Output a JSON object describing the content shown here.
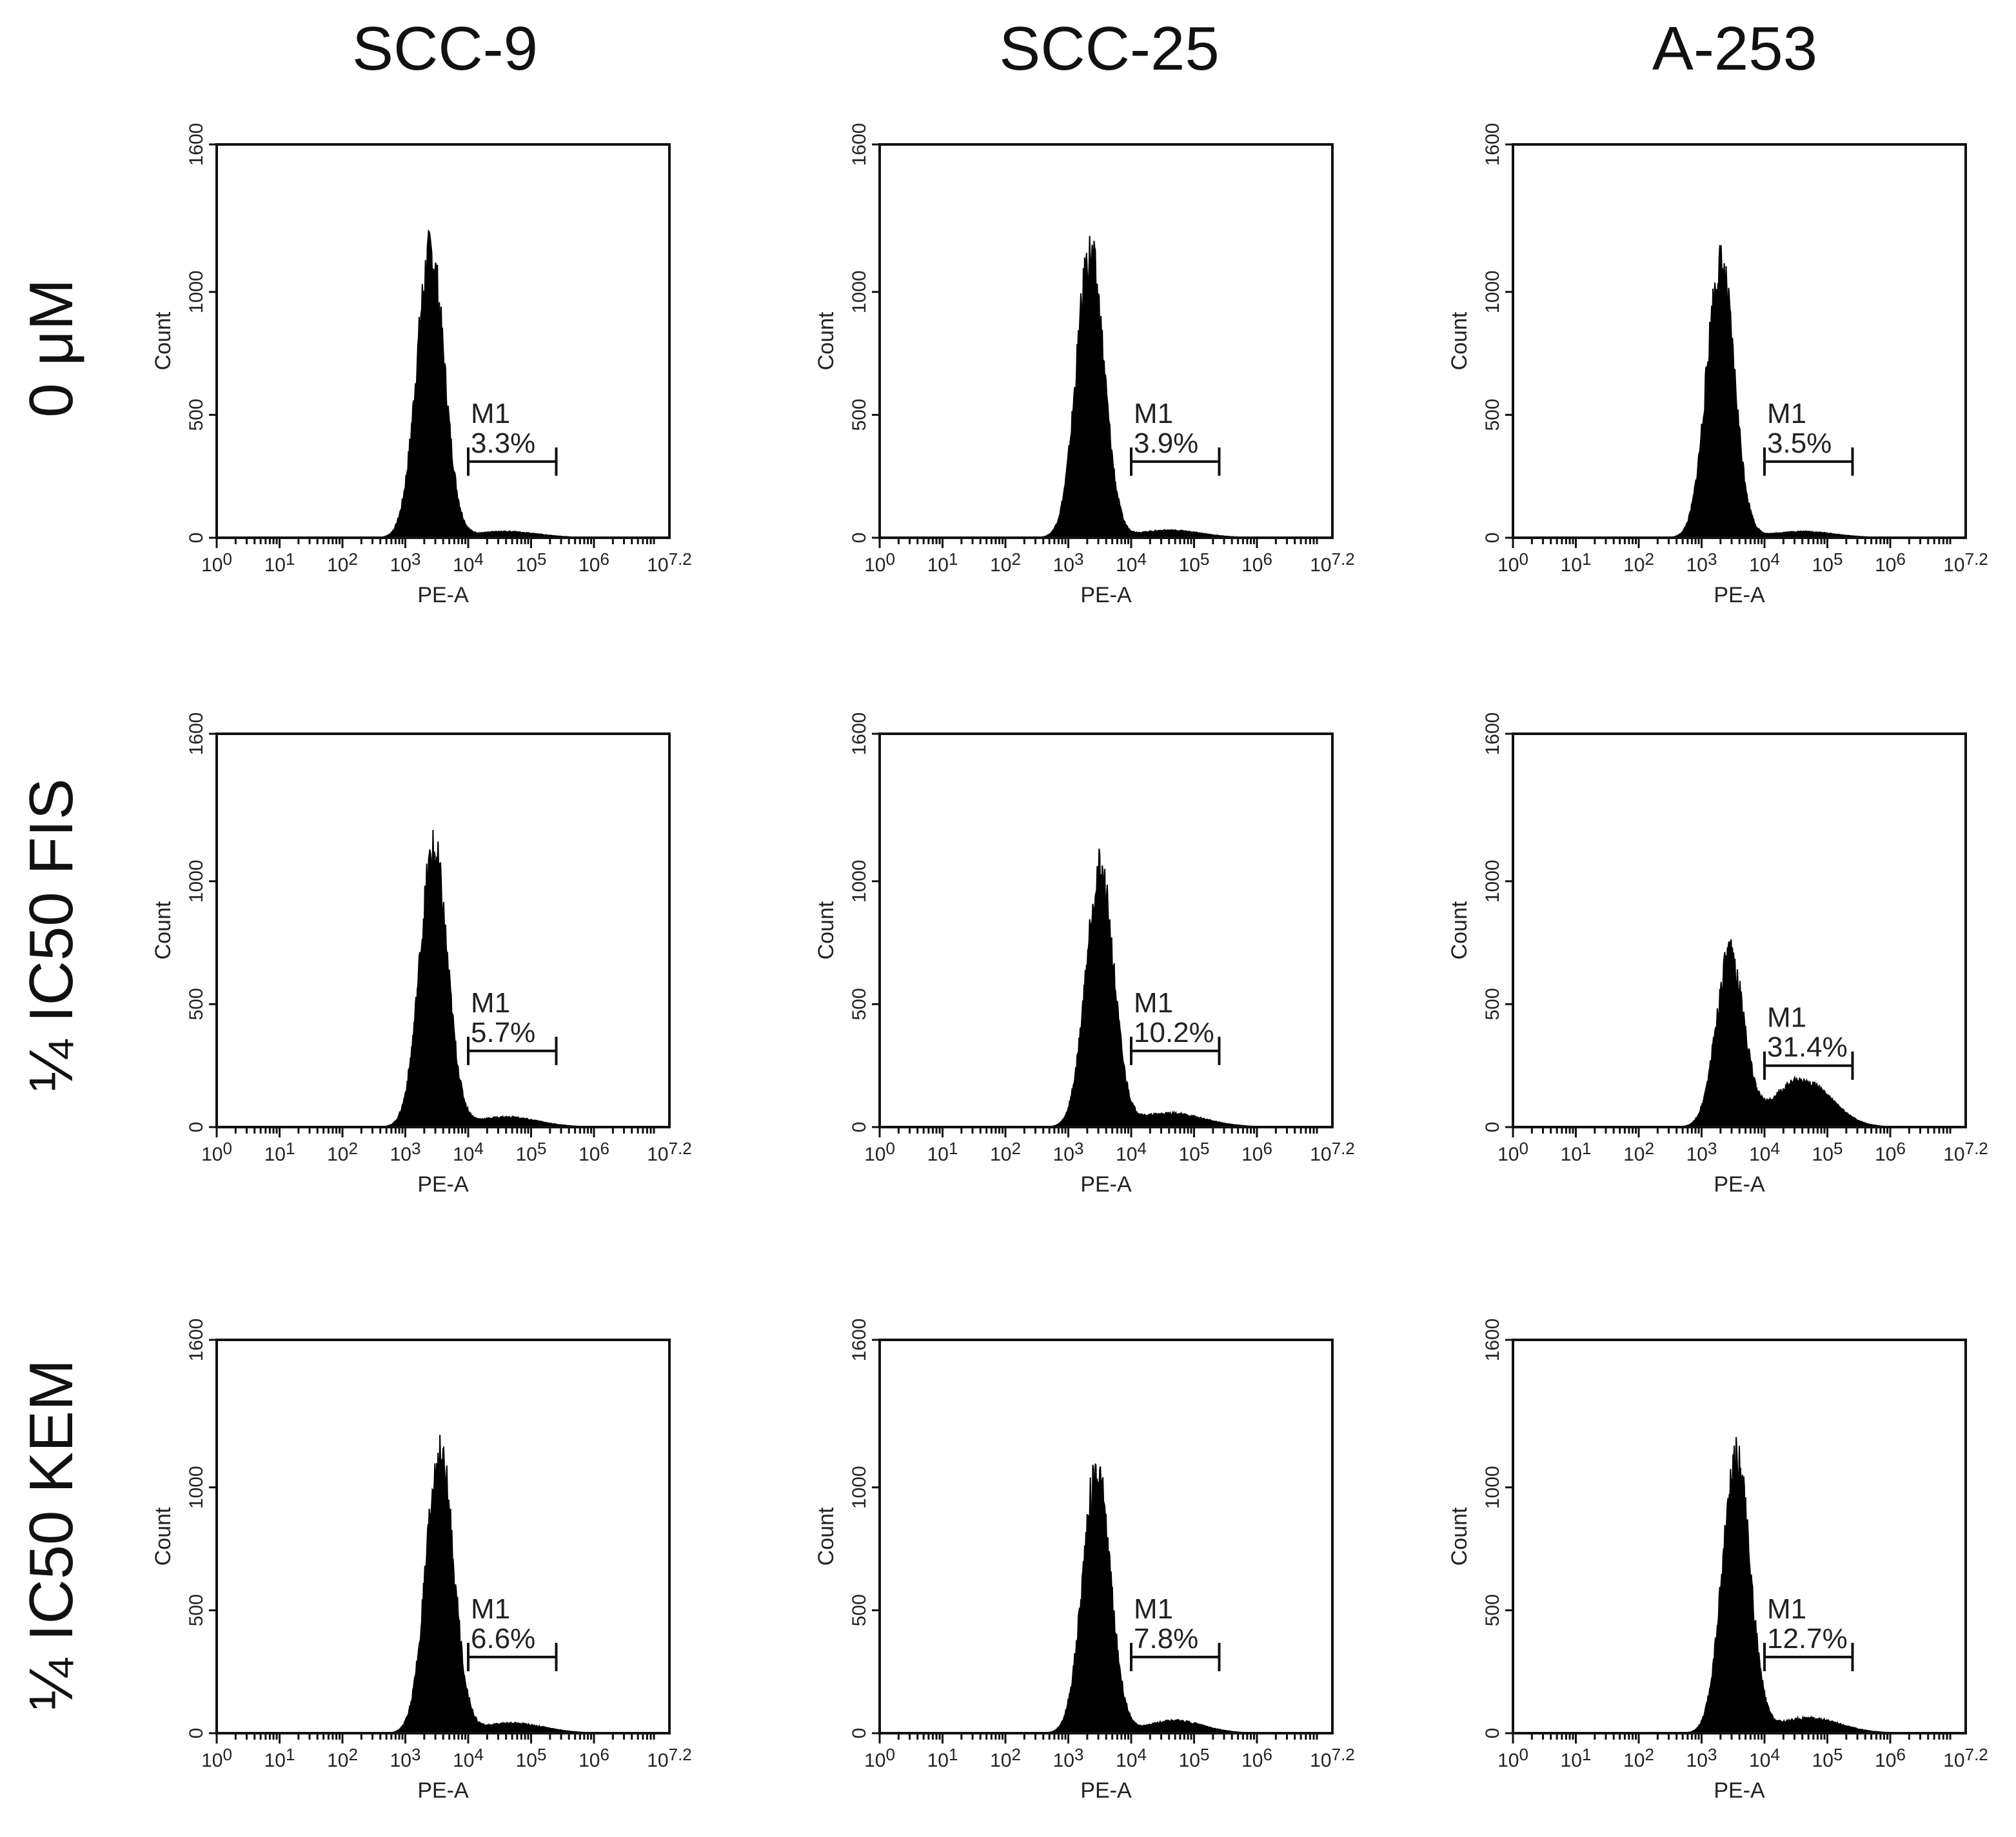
{
  "figure": {
    "column_titles": [
      "SCC-9",
      "SCC-25",
      "A-253"
    ],
    "row_titles": [
      "0 μM",
      "¼ IC50 FIS",
      "¼ IC50 KEM"
    ]
  },
  "chart_data": [
    {
      "type": "histogram",
      "row": 0,
      "col": 0,
      "cell_line": "SCC-9",
      "condition": "0 μM",
      "xlabel": "PE-A",
      "ylabel": "Count",
      "ylim": [
        0,
        1600
      ],
      "yticks": [
        0,
        500,
        1000,
        1600
      ],
      "xlim": [
        0,
        7.2
      ],
      "xticks": [
        "10^0",
        "10^1",
        "10^2",
        "10^3",
        "10^4",
        "10^5",
        "10^6",
        "10^7.2"
      ],
      "peak_log": 3.4,
      "peak_count": 1150,
      "peak_width": 0.22,
      "shoulder_count": 25,
      "shoulder_center": 4.6,
      "shoulder_width": 0.5,
      "marker": {
        "label": "M1",
        "value": "3.3%",
        "x_start": 4.0,
        "x_end": 5.4
      }
    },
    {
      "type": "histogram",
      "row": 0,
      "col": 1,
      "cell_line": "SCC-25",
      "condition": "0 μM",
      "xlabel": "PE-A",
      "ylabel": "Count",
      "ylim": [
        0,
        1600
      ],
      "yticks": [
        0,
        500,
        1000,
        1600
      ],
      "xlim": [
        0,
        7.2
      ],
      "xticks": [
        "10^0",
        "10^1",
        "10^2",
        "10^3",
        "10^4",
        "10^5",
        "10^6",
        "10^7.2"
      ],
      "peak_log": 3.35,
      "peak_count": 1140,
      "peak_width": 0.22,
      "shoulder_count": 30,
      "shoulder_center": 4.6,
      "shoulder_width": 0.5,
      "marker": {
        "label": "M1",
        "value": "3.9%",
        "x_start": 4.0,
        "x_end": 5.4
      }
    },
    {
      "type": "histogram",
      "row": 0,
      "col": 2,
      "cell_line": "A-253",
      "condition": "0 μM",
      "xlabel": "PE-A",
      "ylabel": "Count",
      "ylim": [
        0,
        1600
      ],
      "yticks": [
        0,
        500,
        1000,
        1600
      ],
      "xlim": [
        0,
        7.2
      ],
      "xticks": [
        "10^0",
        "10^1",
        "10^2",
        "10^3",
        "10^4",
        "10^5",
        "10^6",
        "10^7.2"
      ],
      "peak_log": 3.3,
      "peak_count": 1100,
      "peak_width": 0.22,
      "shoulder_count": 25,
      "shoulder_center": 4.6,
      "shoulder_width": 0.5,
      "marker": {
        "label": "M1",
        "value": "3.5%",
        "x_start": 4.0,
        "x_end": 5.4
      }
    },
    {
      "type": "histogram",
      "row": 1,
      "col": 0,
      "cell_line": "SCC-9",
      "condition": "¼ IC50 FIS",
      "xlabel": "PE-A",
      "ylabel": "Count",
      "ylim": [
        0,
        1600
      ],
      "yticks": [
        0,
        500,
        1000,
        1600
      ],
      "xlim": [
        0,
        7.2
      ],
      "xticks": [
        "10^0",
        "10^1",
        "10^2",
        "10^3",
        "10^4",
        "10^5",
        "10^6",
        "10^7.2"
      ],
      "peak_log": 3.45,
      "peak_count": 1110,
      "peak_width": 0.22,
      "shoulder_count": 40,
      "shoulder_center": 4.6,
      "shoulder_width": 0.5,
      "marker": {
        "label": "M1",
        "value": "5.7%",
        "x_start": 4.0,
        "x_end": 5.4
      }
    },
    {
      "type": "histogram",
      "row": 1,
      "col": 1,
      "cell_line": "SCC-25",
      "condition": "¼ IC50 FIS",
      "xlabel": "PE-A",
      "ylabel": "Count",
      "ylim": [
        0,
        1600
      ],
      "yticks": [
        0,
        500,
        1000,
        1600
      ],
      "xlim": [
        0,
        7.2
      ],
      "xticks": [
        "10^0",
        "10^1",
        "10^2",
        "10^3",
        "10^4",
        "10^5",
        "10^6",
        "10^7.2"
      ],
      "peak_log": 3.5,
      "peak_count": 1030,
      "peak_width": 0.22,
      "shoulder_count": 55,
      "shoulder_center": 4.6,
      "shoulder_width": 0.55,
      "marker": {
        "label": "M1",
        "value": "10.2%",
        "x_start": 4.0,
        "x_end": 5.4
      }
    },
    {
      "type": "histogram",
      "row": 1,
      "col": 2,
      "cell_line": "A-253",
      "condition": "¼ IC50 FIS",
      "xlabel": "PE-A",
      "ylabel": "Count",
      "ylim": [
        0,
        1600
      ],
      "yticks": [
        0,
        500,
        1000,
        1600
      ],
      "xlim": [
        0,
        7.2
      ],
      "xticks": [
        "10^0",
        "10^1",
        "10^2",
        "10^3",
        "10^4",
        "10^5",
        "10^6",
        "10^7.2"
      ],
      "peak_log": 3.45,
      "peak_count": 690,
      "peak_width": 0.22,
      "shoulder_count": 190,
      "shoulder_center": 4.6,
      "shoulder_width": 0.45,
      "marker": {
        "label": "M1",
        "value": "31.4%",
        "x_start": 4.0,
        "x_end": 5.4
      }
    },
    {
      "type": "histogram",
      "row": 2,
      "col": 0,
      "cell_line": "SCC-9",
      "condition": "¼ IC50 KEM",
      "xlabel": "PE-A",
      "ylabel": "Count",
      "ylim": [
        0,
        1600
      ],
      "yticks": [
        0,
        500,
        1000,
        1600
      ],
      "xlim": [
        0,
        7.2
      ],
      "xticks": [
        "10^0",
        "10^1",
        "10^2",
        "10^3",
        "10^4",
        "10^5",
        "10^6",
        "10^7.2"
      ],
      "peak_log": 3.55,
      "peak_count": 1120,
      "peak_width": 0.22,
      "shoulder_count": 40,
      "shoulder_center": 4.7,
      "shoulder_width": 0.5,
      "marker": {
        "label": "M1",
        "value": "6.6%",
        "x_start": 4.0,
        "x_end": 5.4
      }
    },
    {
      "type": "histogram",
      "row": 2,
      "col": 1,
      "cell_line": "SCC-25",
      "condition": "¼ IC50 KEM",
      "xlabel": "PE-A",
      "ylabel": "Count",
      "ylim": [
        0,
        1600
      ],
      "yticks": [
        0,
        500,
        1000,
        1600
      ],
      "xlim": [
        0,
        7.2
      ],
      "xticks": [
        "10^0",
        "10^1",
        "10^2",
        "10^3",
        "10^4",
        "10^5",
        "10^6",
        "10^7.2"
      ],
      "peak_log": 3.45,
      "peak_count": 1050,
      "peak_width": 0.22,
      "shoulder_count": 50,
      "shoulder_center": 4.7,
      "shoulder_width": 0.45,
      "marker": {
        "label": "M1",
        "value": "7.8%",
        "x_start": 4.0,
        "x_end": 5.4
      }
    },
    {
      "type": "histogram",
      "row": 2,
      "col": 2,
      "cell_line": "A-253",
      "condition": "¼ IC50 KEM",
      "xlabel": "PE-A",
      "ylabel": "Count",
      "ylim": [
        0,
        1600
      ],
      "yticks": [
        0,
        500,
        1000,
        1600
      ],
      "xlim": [
        0,
        7.2
      ],
      "xticks": [
        "10^0",
        "10^1",
        "10^2",
        "10^3",
        "10^4",
        "10^5",
        "10^6",
        "10^7.2"
      ],
      "peak_log": 3.55,
      "peak_count": 1100,
      "peak_width": 0.22,
      "shoulder_count": 60,
      "shoulder_center": 4.7,
      "shoulder_width": 0.5,
      "marker": {
        "label": "M1",
        "value": "12.7%",
        "x_start": 4.0,
        "x_end": 5.4
      }
    }
  ]
}
